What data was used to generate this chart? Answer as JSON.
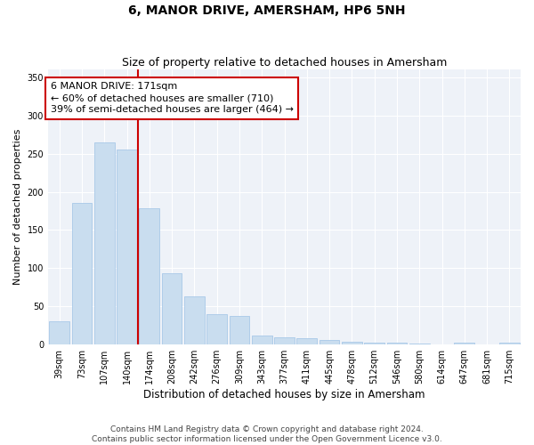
{
  "title": "6, MANOR DRIVE, AMERSHAM, HP6 5NH",
  "subtitle": "Size of property relative to detached houses in Amersham",
  "xlabel": "Distribution of detached houses by size in Amersham",
  "ylabel": "Number of detached properties",
  "categories": [
    "39sqm",
    "73sqm",
    "107sqm",
    "140sqm",
    "174sqm",
    "208sqm",
    "242sqm",
    "276sqm",
    "309sqm",
    "343sqm",
    "377sqm",
    "411sqm",
    "445sqm",
    "478sqm",
    "512sqm",
    "546sqm",
    "580sqm",
    "614sqm",
    "647sqm",
    "681sqm",
    "715sqm"
  ],
  "values": [
    30,
    185,
    265,
    255,
    178,
    93,
    63,
    40,
    38,
    12,
    9,
    8,
    6,
    4,
    3,
    3,
    1,
    0,
    3,
    0,
    2
  ],
  "bar_color": "#c9ddef",
  "bar_edge_color": "#a8c8e8",
  "vline_x_index": 3.5,
  "vline_color": "#cc0000",
  "ylim": [
    0,
    360
  ],
  "yticks": [
    0,
    50,
    100,
    150,
    200,
    250,
    300,
    350
  ],
  "annotation_lines": [
    "6 MANOR DRIVE: 171sqm",
    "← 60% of detached houses are smaller (710)",
    "39% of semi-detached houses are larger (464) →"
  ],
  "annotation_box_color": "#cc0000",
  "fig_bg_color": "#ffffff",
  "ax_bg_color": "#eef2f8",
  "grid_color": "#ffffff",
  "footer": "Contains HM Land Registry data © Crown copyright and database right 2024.\nContains public sector information licensed under the Open Government Licence v3.0.",
  "title_fontsize": 10,
  "subtitle_fontsize": 9,
  "xlabel_fontsize": 8.5,
  "ylabel_fontsize": 8,
  "tick_fontsize": 7,
  "annotation_fontsize": 8,
  "footer_fontsize": 6.5
}
